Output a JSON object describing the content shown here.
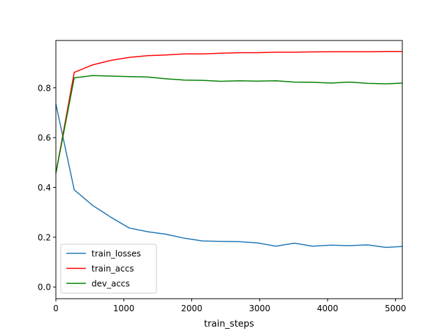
{
  "chart_data": {
    "type": "line",
    "title": "",
    "xlabel": "train_steps",
    "ylabel": "",
    "xlim": [
      0,
      5100
    ],
    "ylim": [
      -0.047,
      0.99
    ],
    "xticks": [
      0,
      1000,
      2000,
      3000,
      4000,
      5000
    ],
    "xtick_labels": [
      "0",
      "1000",
      "2000",
      "3000",
      "4000",
      "5000"
    ],
    "yticks": [
      0.0,
      0.2,
      0.4,
      0.6,
      0.8
    ],
    "ytick_labels": [
      "0.0",
      "0.2",
      "0.4",
      "0.6",
      "0.8"
    ],
    "grid": false,
    "legend_position": "lower-left",
    "x": [
      0,
      270,
      540,
      810,
      1080,
      1350,
      1620,
      1890,
      2160,
      2430,
      2700,
      2970,
      3240,
      3510,
      3780,
      4050,
      4320,
      4590,
      4860,
      5100
    ],
    "series": [
      {
        "name": "train_losses",
        "color": "#1f77b4",
        "values": [
          0.735,
          0.39,
          0.328,
          0.28,
          0.237,
          0.222,
          0.212,
          0.196,
          0.185,
          0.183,
          0.182,
          0.177,
          0.164,
          0.176,
          0.164,
          0.168,
          0.166,
          0.169,
          0.159,
          0.163
        ]
      },
      {
        "name": "train_accs",
        "color": "#ff0000",
        "values": [
          0.457,
          0.862,
          0.892,
          0.91,
          0.922,
          0.929,
          0.932,
          0.936,
          0.936,
          0.939,
          0.941,
          0.941,
          0.943,
          0.943,
          0.944,
          0.945,
          0.945,
          0.945,
          0.946,
          0.946
        ]
      },
      {
        "name": "dev_accs",
        "color": "#008000",
        "values": [
          0.457,
          0.84,
          0.849,
          0.847,
          0.845,
          0.843,
          0.836,
          0.831,
          0.83,
          0.826,
          0.828,
          0.827,
          0.828,
          0.823,
          0.822,
          0.819,
          0.823,
          0.818,
          0.816,
          0.819
        ]
      }
    ]
  }
}
